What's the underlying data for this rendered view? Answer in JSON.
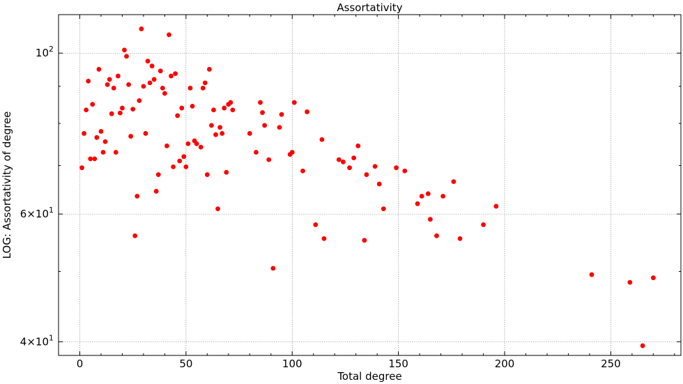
{
  "chart_data": {
    "type": "scatter",
    "title": "Assortativity",
    "xlabel": "Total degree",
    "ylabel": "LOG: Assortativity of degree",
    "xlim": [
      -10,
      283
    ],
    "ylim": [
      38.3,
      113
    ],
    "yscale": "log",
    "grid": true,
    "marker_color": "#ff0000",
    "x_ticks": [
      {
        "value": 0,
        "label": "0"
      },
      {
        "value": 50,
        "label": "50"
      },
      {
        "value": 100,
        "label": "100"
      },
      {
        "value": 150,
        "label": "150"
      },
      {
        "value": 200,
        "label": "200"
      },
      {
        "value": 250,
        "label": "250"
      }
    ],
    "y_major_ticks": [
      {
        "value": 40,
        "base": "4",
        "mult": "×",
        "pow": "10",
        "exp": "1"
      },
      {
        "value": 60,
        "base": "6",
        "mult": "×",
        "pow": "10",
        "exp": "1"
      },
      {
        "value": 100,
        "base": "",
        "mult": "",
        "pow": "10",
        "exp": "2"
      }
    ],
    "y_minor_ticks": [
      50,
      70,
      80,
      90
    ],
    "points": [
      [
        1,
        69.5
      ],
      [
        2,
        77.5
      ],
      [
        3,
        83.5
      ],
      [
        4,
        91.5
      ],
      [
        5,
        71.5
      ],
      [
        6,
        85
      ],
      [
        7,
        71.5
      ],
      [
        8,
        76.5
      ],
      [
        9,
        95
      ],
      [
        10,
        78
      ],
      [
        11,
        73
      ],
      [
        12,
        75.5
      ],
      [
        13,
        90.5
      ],
      [
        14,
        92
      ],
      [
        15,
        82.5
      ],
      [
        16,
        89.5
      ],
      [
        17,
        73
      ],
      [
        18,
        93
      ],
      [
        19,
        82.7
      ],
      [
        20,
        84
      ],
      [
        21,
        101
      ],
      [
        22,
        99
      ],
      [
        23,
        90.5
      ],
      [
        24,
        76.8
      ],
      [
        25,
        83.7
      ],
      [
        26,
        56
      ],
      [
        27,
        63.5
      ],
      [
        28,
        86
      ],
      [
        29,
        108
      ],
      [
        30,
        90
      ],
      [
        31,
        77.5
      ],
      [
        32,
        97.5
      ],
      [
        33,
        91
      ],
      [
        34,
        96
      ],
      [
        35,
        92
      ],
      [
        36,
        64.5
      ],
      [
        37,
        68
      ],
      [
        38,
        94.5
      ],
      [
        39,
        89.5
      ],
      [
        40,
        88
      ],
      [
        41,
        74.5
      ],
      [
        42,
        106
      ],
      [
        43,
        93
      ],
      [
        44,
        69.7
      ],
      [
        45,
        93.7
      ],
      [
        46,
        82
      ],
      [
        47,
        71
      ],
      [
        48,
        84
      ],
      [
        49,
        72
      ],
      [
        50,
        69.7
      ],
      [
        51,
        75
      ],
      [
        52,
        89.5
      ],
      [
        53,
        84.5
      ],
      [
        54,
        75.7
      ],
      [
        55,
        75
      ],
      [
        57,
        74.2
      ],
      [
        58,
        89.5
      ],
      [
        59,
        91
      ],
      [
        60,
        68
      ],
      [
        61,
        95
      ],
      [
        62,
        79.5
      ],
      [
        63,
        83.5
      ],
      [
        64,
        77.2
      ],
      [
        65,
        61
      ],
      [
        66,
        79
      ],
      [
        67,
        77.5
      ],
      [
        68,
        84
      ],
      [
        69,
        68.5
      ],
      [
        70,
        85
      ],
      [
        71,
        85.5
      ],
      [
        72,
        83.5
      ],
      [
        80,
        77.5
      ],
      [
        83,
        73
      ],
      [
        85,
        85.5
      ],
      [
        86,
        82.8
      ],
      [
        87,
        79.5
      ],
      [
        89,
        71.3
      ],
      [
        91,
        50.5
      ],
      [
        94,
        79
      ],
      [
        95,
        82.3
      ],
      [
        99,
        72.5
      ],
      [
        100,
        73
      ],
      [
        101,
        85.5
      ],
      [
        105,
        68.8
      ],
      [
        107,
        83
      ],
      [
        111,
        58
      ],
      [
        114,
        76
      ],
      [
        115,
        55.5
      ],
      [
        122,
        71.3
      ],
      [
        124,
        70.8
      ],
      [
        127,
        69.5
      ],
      [
        129,
        71.7
      ],
      [
        131,
        74.5
      ],
      [
        134,
        55.2
      ],
      [
        135,
        68
      ],
      [
        139,
        69.8
      ],
      [
        141,
        66
      ],
      [
        143,
        61
      ],
      [
        149,
        69.5
      ],
      [
        153,
        68.8
      ],
      [
        159,
        62
      ],
      [
        161,
        63.5
      ],
      [
        164,
        64
      ],
      [
        165,
        59
      ],
      [
        168,
        56
      ],
      [
        171,
        63.5
      ],
      [
        176,
        66.5
      ],
      [
        179,
        55.5
      ],
      [
        190,
        58
      ],
      [
        196,
        61.5
      ],
      [
        241,
        49.5
      ],
      [
        259,
        48.3
      ],
      [
        265,
        39.5
      ],
      [
        270,
        49
      ]
    ]
  }
}
